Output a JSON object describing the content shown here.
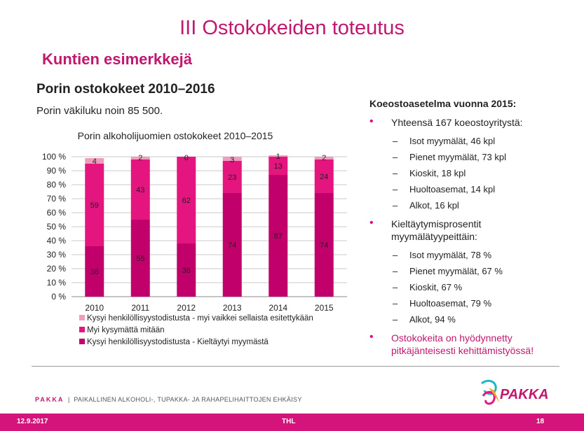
{
  "slide": {
    "title": "III Ostokokeiden toteutus",
    "subtitle": "Kuntien esimerkkejä",
    "section_heading": "Porin ostokokeet 2010–2016",
    "population": "Porin väkiluku noin 85 500."
  },
  "right_panel": {
    "heading": "Koeostoasetelma vuonna 2015:",
    "bullet1": "Yhteensä 167 koeostoyritystä:",
    "bullet1_items": [
      "Isot myymälät, 46 kpl",
      "Pienet myymälät, 73 kpl",
      "Kioskit, 18 kpl",
      "Huoltoasemat, 14 kpl",
      "Alkot, 16 kpl"
    ],
    "bullet2_line1": "Kieltäytymisprosentit",
    "bullet2_line2": "myymälätyypeittäin:",
    "bullet2_items": [
      "Isot myymälät, 78 %",
      "Pienet myymälät, 67 %",
      "Kioskit, 67 %",
      "Huoltoasemat, 79 %",
      "Alkot, 94 %"
    ],
    "bullet3_line1": "Ostokokeita on hyödynnetty",
    "bullet3_line2": "pitkäjänteisesti kehittämistyössä!"
  },
  "footer": {
    "brand": "PAKKA",
    "separator": "|",
    "tagline": "PAIKALLINEN ALKOHOLI-, TUPAKKA- JA RAHAPELIHAITTOJEN EHKÄISY",
    "date": "12.9.2017",
    "org": "THL",
    "page": "18",
    "logo_text": "PAKKA"
  },
  "colors": {
    "accent": "#c0176f",
    "series_refused": "#c2006b",
    "series_sold": "#e4157f",
    "series_sold_id": "#f09cbf"
  },
  "chart_data": {
    "type": "bar",
    "stacked": true,
    "title": "Porin alkoholijuomien ostokokeet 2010–2015",
    "categories": [
      "2010",
      "2011",
      "2012",
      "2013",
      "2014",
      "2015"
    ],
    "ylim": [
      0,
      100
    ],
    "yticks": [
      "0 %",
      "10 %",
      "20 %",
      "30 %",
      "40 %",
      "50 %",
      "60 %",
      "70 %",
      "80 %",
      "90 %",
      "100 %"
    ],
    "grid": true,
    "legend_position": "bottom",
    "series": [
      {
        "name": "Kysyi henkilöllisyystodistusta - Kieltäytyi myymästä",
        "values": [
          36,
          55,
          38,
          74,
          87,
          74
        ],
        "color": "#c2006b"
      },
      {
        "name": "Myi kysymättä mitään",
        "values": [
          59,
          43,
          62,
          23,
          13,
          24
        ],
        "color": "#e4157f"
      },
      {
        "name": "Kysyi henkilöllisyystodistusta - myi vaikkei sellaista esitettykään",
        "values": [
          4,
          2,
          0,
          3,
          1,
          2
        ],
        "color": "#f09cbf"
      }
    ],
    "legend_order": [
      2,
      1,
      0
    ]
  }
}
